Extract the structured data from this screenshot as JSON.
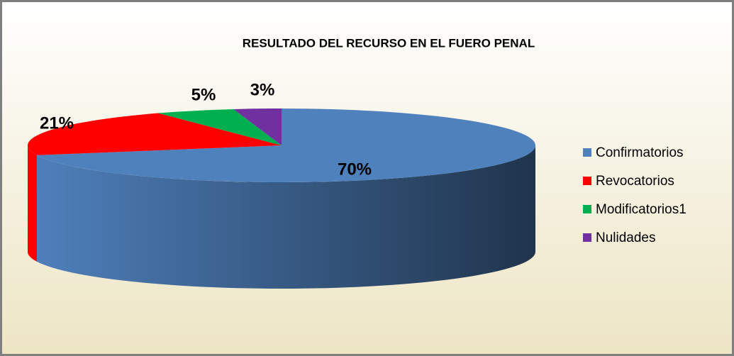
{
  "chart_data": {
    "type": "pie",
    "title": "RESULTADO DEL RECURSO EN EL FUERO PENAL",
    "categories": [
      "Confirmatorios",
      "Revocatorios",
      "Modificatorios1",
      "Nulidades"
    ],
    "values": [
      70,
      21,
      5,
      3
    ],
    "value_labels": [
      "70%",
      "21%",
      "5%",
      "3%"
    ],
    "colors": [
      "#4f81bd",
      "#ff0000",
      "#00b050",
      "#7030a0"
    ],
    "legend": "right"
  }
}
